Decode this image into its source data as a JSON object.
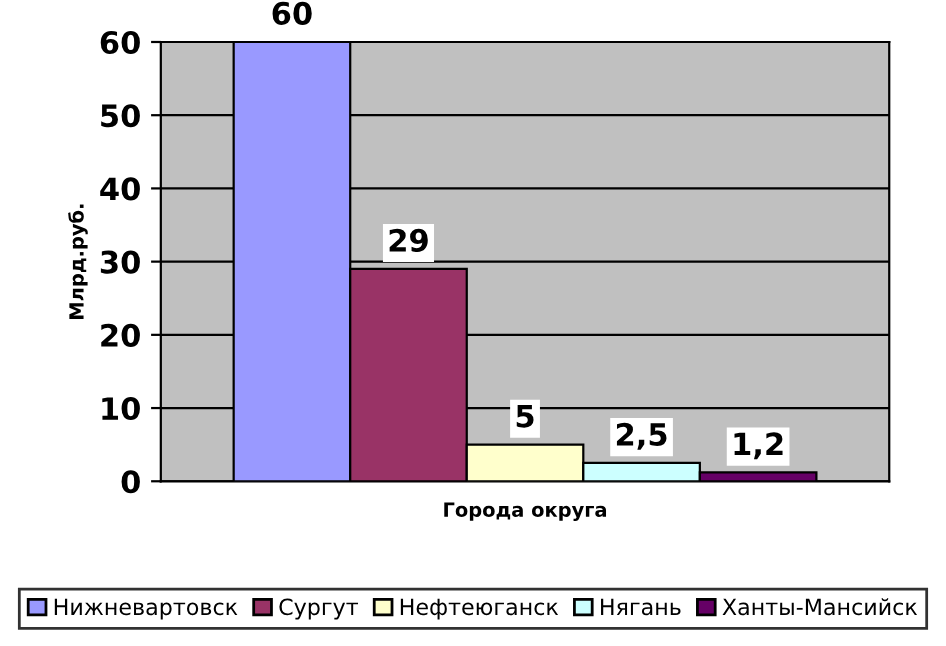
{
  "chart_data": {
    "type": "bar",
    "xlabel": "Города округа",
    "ylabel": "Млрд.руб.",
    "categories": [
      null
    ],
    "series": [
      {
        "name": "Нижневартовск",
        "color": "#9999ff",
        "values": [
          60
        ],
        "value_labels": [
          "60"
        ]
      },
      {
        "name": "Сургут",
        "color": "#993366",
        "values": [
          29
        ],
        "value_labels": [
          "29"
        ]
      },
      {
        "name": "Нефтеюганск",
        "color": "#ffffcc",
        "values": [
          5
        ],
        "value_labels": [
          "5"
        ]
      },
      {
        "name": "Нягань",
        "color": "#ccffff",
        "values": [
          2.5
        ],
        "value_labels": [
          "2,5"
        ]
      },
      {
        "name": "Ханты-Мансийск",
        "color": "#660066",
        "values": [
          1.2
        ],
        "value_labels": [
          "1,2"
        ]
      }
    ],
    "ylim": [
      0,
      60
    ],
    "yticks": [
      0,
      10,
      20,
      30,
      40,
      50,
      60
    ],
    "grid": "y",
    "legend": "bottom"
  }
}
